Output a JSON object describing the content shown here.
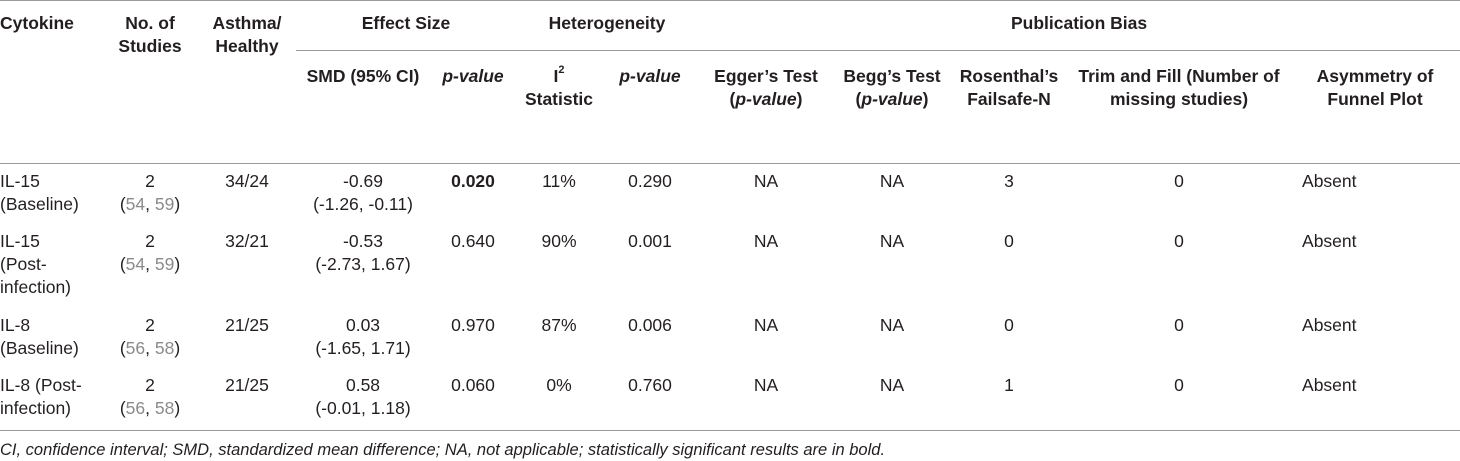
{
  "headers": {
    "cytokine": "Cytokine",
    "num_studies": "No. of Studies",
    "asthma_healthy": "Asthma/ Healthy",
    "effect_size": "Effect Size",
    "heterogeneity": "Heterogeneity",
    "publication_bias": "Publication Bias",
    "smd": "SMD (95% CI)",
    "p_value": "p-value",
    "i2_letter": "I",
    "i2_sup": "2",
    "i2_rest": "Statistic",
    "het_p_value": "p-value",
    "egger_line1": "Egger’s Test",
    "egger_line2": "p-value",
    "begg_line1": "Begg’s Test",
    "begg_line2": "p-value",
    "rosenthal": "Rosenthal’s Failsafe-N",
    "trim_fill": "Trim and Fill (Number of missing studies)",
    "asymmetry": "Asymmetry of Funnel Plot"
  },
  "rows": [
    {
      "cytokine": "IL-15 (Baseline)",
      "n": "2",
      "ref_open": "(",
      "ref_a": "54",
      "ref_sep": ", ",
      "ref_b": "59",
      "ref_close": ")",
      "asthma_healthy": "34/24",
      "smd": "-0.69",
      "ci": "(-1.26, -0.11)",
      "p": "0.020",
      "i2": "11%",
      "het_p": "0.290",
      "egger": "NA",
      "begg": "NA",
      "rosenthal": "3",
      "trim": "0",
      "asym": "Absent"
    },
    {
      "cytokine": "IL-15 (Post-infection)",
      "n": "2",
      "ref_open": "(",
      "ref_a": "54",
      "ref_sep": ", ",
      "ref_b": "59",
      "ref_close": ")",
      "asthma_healthy": "32/21",
      "smd": "-0.53",
      "ci": "(-2.73, 1.67)",
      "p": "0.640",
      "i2": "90%",
      "het_p": "0.001",
      "egger": "NA",
      "begg": "NA",
      "rosenthal": "0",
      "trim": "0",
      "asym": "Absent"
    },
    {
      "cytokine": "IL-8 (Baseline)",
      "n": "2",
      "ref_open": "(",
      "ref_a": "56",
      "ref_sep": ", ",
      "ref_b": "58",
      "ref_close": ")",
      "asthma_healthy": "21/25",
      "smd": "0.03",
      "ci": "(-1.65, 1.71)",
      "p": "0.970",
      "i2": "87%",
      "het_p": "0.006",
      "egger": "NA",
      "begg": "NA",
      "rosenthal": "0",
      "trim": "0",
      "asym": "Absent"
    },
    {
      "cytokine": "IL-8 (Post-infection)",
      "n": "2",
      "ref_open": "(",
      "ref_a": "56",
      "ref_sep": ", ",
      "ref_b": "58",
      "ref_close": ")",
      "asthma_healthy": "21/25",
      "smd": "0.58",
      "ci": "(-0.01, 1.18)",
      "p": "0.060",
      "i2": "0%",
      "het_p": "0.760",
      "egger": "NA",
      "begg": "NA",
      "rosenthal": "1",
      "trim": "0",
      "asym": "Absent"
    }
  ],
  "footnote": "CI, confidence interval; SMD, standardized mean difference; NA, not applicable; statistically significant results are in bold."
}
